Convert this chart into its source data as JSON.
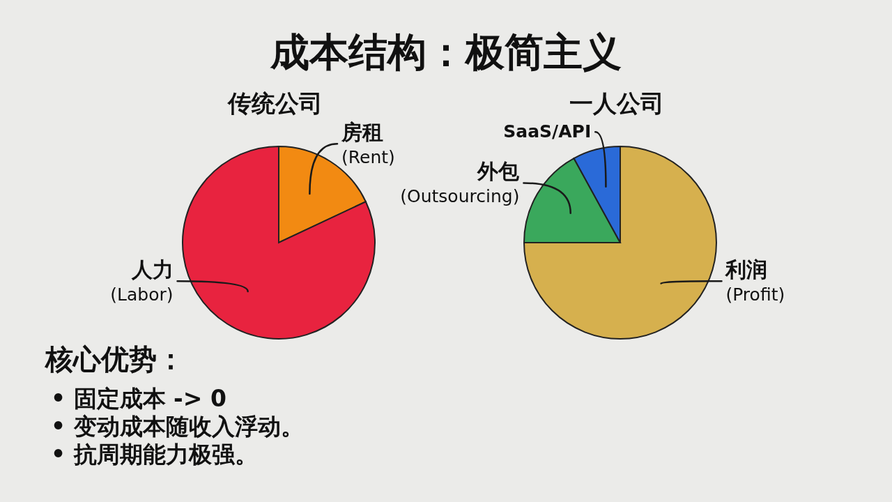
{
  "chart_data": [
    {
      "type": "other",
      "title": "成本结构：极简主义"
    },
    {
      "type": "pie",
      "title": "传统公司",
      "categories": [
        "房租 (Rent)",
        "人力 (Labor)"
      ],
      "values": [
        18,
        82
      ],
      "colors": [
        "#f28a12",
        "#e8233f"
      ]
    },
    {
      "type": "pie",
      "title": "一人公司",
      "categories": [
        "利润 (Profit)",
        "外包 (Outsourcing)",
        "SaaS/API"
      ],
      "values": [
        75,
        17,
        8
      ],
      "colors": [
        "#d6b04e",
        "#3aa85c",
        "#2a6ad8"
      ]
    },
    {
      "type": "other",
      "title": "核心优势：",
      "annotations": [
        "• 固定成本 -> 0",
        "• 变动成本随收入浮动。",
        "• 抗周期能力极强。"
      ]
    }
  ]
}
